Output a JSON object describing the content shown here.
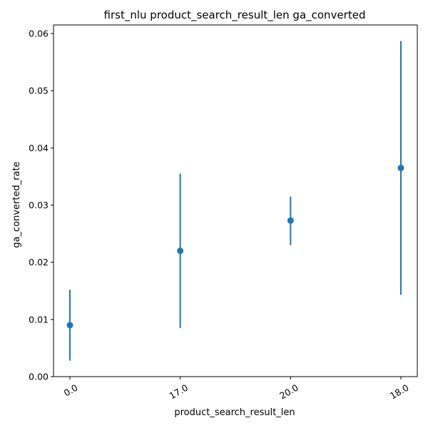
{
  "chart_data": {
    "type": "scatter",
    "title": "first_nlu product_search_result_len ga_converted",
    "xlabel": "product_search_result_len",
    "ylabel": "ga_converted_rate",
    "categories": [
      "0.0",
      "17.0",
      "20.0",
      "18.0"
    ],
    "series": [
      {
        "values": [
          0.009,
          0.022,
          0.0273,
          0.0365
        ],
        "error_low": [
          0.0028,
          0.0085,
          0.023,
          0.0143
        ],
        "error_high": [
          0.0152,
          0.0355,
          0.0315,
          0.0587
        ]
      }
    ],
    "ylim": [
      0,
      0.0615
    ],
    "yticks": [
      0.0,
      0.01,
      0.02,
      0.03,
      0.04,
      0.05,
      0.06
    ],
    "ytick_labels": [
      "0.00",
      "0.01",
      "0.02",
      "0.03",
      "0.04",
      "0.05",
      "0.06"
    ],
    "grid": false,
    "colors": {
      "series": "#1f77b4",
      "axis": "#000000"
    }
  }
}
